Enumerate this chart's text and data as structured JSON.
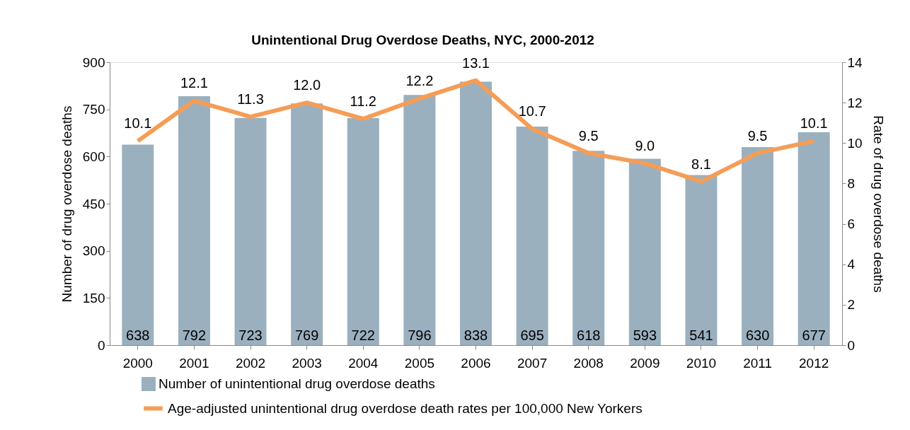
{
  "chart_data": {
    "type": "bar",
    "title": "Unintentional Drug Overdose Deaths, NYC, 2000-2012",
    "ylabel": "Number of drug overdose deaths",
    "y2label": "Rate of drug overdose deaths",
    "categories": [
      "2000",
      "2001",
      "2002",
      "2003",
      "2004",
      "2005",
      "2006",
      "2007",
      "2008",
      "2009",
      "2010",
      "2011",
      "2012"
    ],
    "series": [
      {
        "name": "Number of unintentional drug overdose deaths",
        "color": "#9bb0bf",
        "values": [
          638,
          792,
          723,
          769,
          722,
          796,
          838,
          695,
          618,
          593,
          541,
          630,
          677
        ]
      },
      {
        "name": "Age-adjusted unintentional drug overdose death rates per 100,000 New Yorkers",
        "type": "line",
        "axis": "y2",
        "color": "#f59d56",
        "values": [
          10.1,
          12.1,
          11.3,
          12.0,
          11.2,
          12.2,
          13.1,
          10.7,
          9.5,
          9.0,
          8.1,
          9.5,
          10.1
        ],
        "value_labels": [
          "10.1",
          "12.1",
          "11.3",
          "12.0",
          "11.2",
          "12.2",
          "13.1",
          "10.7",
          "9.5",
          "9.0",
          "8.1",
          "9.5",
          "10.1"
        ]
      }
    ],
    "ylim": [
      0,
      900
    ],
    "yticks": [
      0,
      150,
      300,
      450,
      600,
      750,
      900
    ],
    "y2lim": [
      0,
      14
    ],
    "y2ticks": [
      0,
      2,
      4,
      6,
      8,
      10,
      12,
      14
    ],
    "data_labels": true,
    "grid": false,
    "legend": "bottom",
    "marker": "none"
  }
}
